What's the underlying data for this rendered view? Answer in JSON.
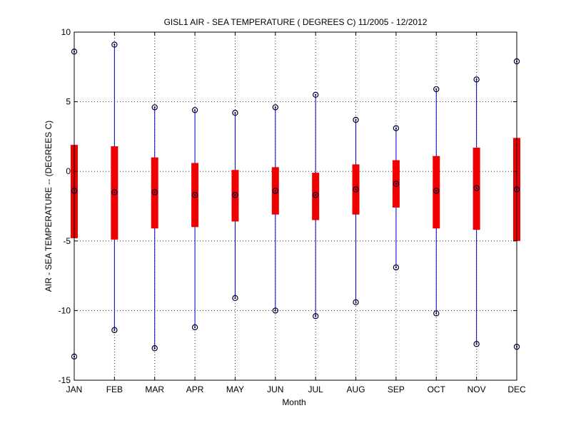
{
  "chart_data": {
    "type": "boxplot",
    "title": "GISL1  AIR - SEA TEMPERATURE ( DEGREES C) 11/2005 - 12/2012",
    "xlabel": "Month",
    "ylabel": "AIR - SEA TEMPERATURE -- (DEGREES C)",
    "ylim": [
      -15,
      10
    ],
    "yticks": [
      -15,
      -10,
      -5,
      0,
      5,
      10
    ],
    "grid": true,
    "categories": [
      "JAN",
      "FEB",
      "MAR",
      "APR",
      "MAY",
      "JUN",
      "JUL",
      "AUG",
      "SEP",
      "OCT",
      "NOV",
      "DEC"
    ],
    "series": [
      {
        "name": "max",
        "values": [
          8.6,
          9.1,
          4.6,
          4.4,
          4.2,
          4.6,
          5.5,
          3.7,
          3.1,
          5.9,
          6.6,
          7.9
        ]
      },
      {
        "name": "q3",
        "values": [
          1.9,
          1.8,
          1.0,
          0.6,
          0.1,
          0.3,
          -0.1,
          0.5,
          0.8,
          1.1,
          1.7,
          2.4
        ]
      },
      {
        "name": "median",
        "values": [
          -1.4,
          -1.5,
          -1.5,
          -1.7,
          -1.7,
          -1.4,
          -1.7,
          -1.3,
          -0.9,
          -1.4,
          -1.2,
          -1.3
        ]
      },
      {
        "name": "q1",
        "values": [
          -4.8,
          -4.9,
          -4.1,
          -4.0,
          -3.6,
          -3.1,
          -3.5,
          -3.1,
          -2.6,
          -4.1,
          -4.2,
          -5.0
        ]
      },
      {
        "name": "min",
        "values": [
          -13.3,
          -11.4,
          -12.7,
          -11.2,
          -9.1,
          -10.0,
          -10.4,
          -9.4,
          -6.9,
          -10.2,
          -12.4,
          -12.6
        ]
      }
    ],
    "colors": {
      "whisker": "#0000cc",
      "box": "#ee0000",
      "marker": "#000033",
      "axis": "#000000",
      "grid": "#000000"
    }
  }
}
